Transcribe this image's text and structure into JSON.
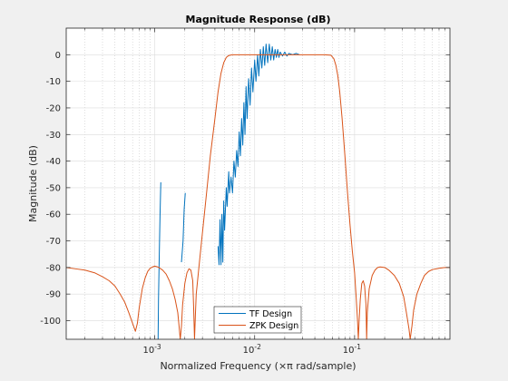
{
  "chart_data": {
    "type": "line",
    "title": "Magnitude Response (dB)",
    "xlabel": "Normalized Frequency (×π rad/sample)",
    "ylabel": "Magnitude (dB)",
    "x_scale": "log",
    "xlim": [
      0.00013,
      0.9
    ],
    "ylim": [
      -107,
      10
    ],
    "x_ticks": [
      {
        "value": 0.001,
        "base": "10",
        "exp": "-3"
      },
      {
        "value": 0.01,
        "base": "10",
        "exp": "-2"
      },
      {
        "value": 0.1,
        "base": "10",
        "exp": "-1"
      }
    ],
    "y_ticks": [
      0,
      -10,
      -20,
      -30,
      -40,
      -50,
      -60,
      -70,
      -80,
      -90,
      -100
    ],
    "grid": true,
    "legend_location": "bottom-center",
    "series": [
      {
        "name": "TF Design",
        "color": "#0072BD",
        "segments": [
          [
            [
              0.00108,
              -107
            ],
            [
              0.00109,
              -92
            ],
            [
              0.00111,
              -75
            ],
            [
              0.00113,
              -60
            ],
            [
              0.00115,
              -48
            ]
          ],
          [
            [
              0.00185,
              -78
            ],
            [
              0.00192,
              -70
            ],
            [
              0.00197,
              -58
            ],
            [
              0.00202,
              -52
            ]
          ],
          [
            [
              0.0043,
              -72
            ],
            [
              0.0044,
              -79
            ],
            [
              0.0045,
              -62
            ],
            [
              0.0046,
              -79
            ],
            [
              0.0047,
              -60
            ],
            [
              0.0048,
              -78
            ],
            [
              0.0049,
              -55
            ],
            [
              0.005,
              -66
            ],
            [
              0.0052,
              -50
            ],
            [
              0.0053,
              -57
            ],
            [
              0.0055,
              -44
            ],
            [
              0.0056,
              -52
            ],
            [
              0.0058,
              -46
            ],
            [
              0.006,
              -52
            ],
            [
              0.0062,
              -40
            ],
            [
              0.0064,
              -46
            ],
            [
              0.0066,
              -36
            ],
            [
              0.0068,
              -42
            ],
            [
              0.007,
              -29
            ],
            [
              0.0072,
              -38
            ],
            [
              0.0074,
              -24
            ],
            [
              0.0076,
              -34
            ],
            [
              0.0078,
              -18
            ],
            [
              0.008,
              -30
            ],
            [
              0.0082,
              -12
            ],
            [
              0.0084,
              -24
            ],
            [
              0.0087,
              -9
            ],
            [
              0.009,
              -19
            ],
            [
              0.0093,
              -5
            ],
            [
              0.0096,
              -14
            ],
            [
              0.01,
              -2
            ],
            [
              0.0103,
              -10
            ],
            [
              0.0107,
              0
            ],
            [
              0.011,
              -8
            ],
            [
              0.0114,
              2
            ],
            [
              0.0118,
              -5
            ],
            [
              0.0122,
              3
            ],
            [
              0.0126,
              -4
            ],
            [
              0.013,
              4
            ],
            [
              0.0135,
              -3
            ],
            [
              0.014,
              4
            ],
            [
              0.0145,
              -2
            ],
            [
              0.015,
              3
            ],
            [
              0.0155,
              -2
            ],
            [
              0.016,
              2
            ],
            [
              0.0165,
              -1
            ],
            [
              0.017,
              2
            ],
            [
              0.0175,
              -1
            ],
            [
              0.018,
              1
            ],
            [
              0.019,
              -0.5
            ],
            [
              0.02,
              1
            ],
            [
              0.021,
              -0.5
            ],
            [
              0.022,
              0.5
            ],
            [
              0.024,
              0
            ],
            [
              0.026,
              0.5
            ],
            [
              0.028,
              0
            ]
          ]
        ]
      },
      {
        "name": "ZPK Design",
        "color": "#D95319",
        "segments": [
          [
            [
              0.00013,
              -80
            ],
            [
              0.00016,
              -80.5
            ],
            [
              0.0002,
              -81
            ],
            [
              0.00025,
              -82
            ],
            [
              0.0003,
              -83.5
            ],
            [
              0.00035,
              -85
            ],
            [
              0.0004,
              -87
            ],
            [
              0.00045,
              -90
            ],
            [
              0.0005,
              -93
            ],
            [
              0.00055,
              -97
            ],
            [
              0.0006,
              -101
            ],
            [
              0.00064,
              -104
            ],
            [
              0.00067,
              -101
            ],
            [
              0.0007,
              -95
            ],
            [
              0.00075,
              -88
            ],
            [
              0.0008,
              -84
            ],
            [
              0.00085,
              -81.5
            ],
            [
              0.0009,
              -80.3
            ],
            [
              0.00095,
              -79.8
            ],
            [
              0.001,
              -79.5
            ],
            [
              0.00105,
              -79.7
            ],
            [
              0.0011,
              -80
            ],
            [
              0.0012,
              -81
            ],
            [
              0.0013,
              -82.5
            ],
            [
              0.0014,
              -85
            ],
            [
              0.0015,
              -88
            ],
            [
              0.0016,
              -92
            ],
            [
              0.0017,
              -97
            ],
            [
              0.00175,
              -102
            ],
            [
              0.0018,
              -107
            ],
            [
              0.00185,
              -102
            ],
            [
              0.0019,
              -94
            ],
            [
              0.002,
              -86
            ],
            [
              0.0021,
              -82
            ],
            [
              0.0022,
              -80.5
            ],
            [
              0.0023,
              -81
            ],
            [
              0.0024,
              -85
            ],
            [
              0.00245,
              -95
            ],
            [
              0.0025,
              -107
            ],
            [
              0.00255,
              -98
            ],
            [
              0.0026,
              -90
            ],
            [
              0.0028,
              -78
            ],
            [
              0.003,
              -67
            ],
            [
              0.0033,
              -52
            ],
            [
              0.0036,
              -38
            ],
            [
              0.004,
              -24
            ],
            [
              0.0043,
              -14
            ],
            [
              0.0046,
              -7
            ],
            [
              0.0049,
              -3
            ],
            [
              0.0052,
              -1
            ],
            [
              0.0055,
              -0.3
            ],
            [
              0.006,
              0
            ],
            [
              0.01,
              0
            ],
            [
              0.02,
              0
            ],
            [
              0.03,
              0
            ],
            [
              0.04,
              0
            ],
            [
              0.05,
              0
            ],
            [
              0.058,
              -0.2
            ],
            [
              0.062,
              -1.5
            ],
            [
              0.065,
              -4
            ],
            [
              0.068,
              -8
            ],
            [
              0.071,
              -14
            ],
            [
              0.075,
              -24
            ],
            [
              0.08,
              -38
            ],
            [
              0.085,
              -52
            ],
            [
              0.09,
              -64
            ],
            [
              0.095,
              -74
            ],
            [
              0.1,
              -82
            ],
            [
              0.104,
              -92
            ],
            [
              0.107,
              -100
            ],
            [
              0.109,
              -107
            ],
            [
              0.111,
              -100
            ],
            [
              0.114,
              -92
            ],
            [
              0.118,
              -86
            ],
            [
              0.122,
              -85
            ],
            [
              0.126,
              -87
            ],
            [
              0.13,
              -94
            ],
            [
              0.132,
              -107
            ],
            [
              0.134,
              -97
            ],
            [
              0.14,
              -88
            ],
            [
              0.15,
              -83
            ],
            [
              0.16,
              -81
            ],
            [
              0.17,
              -80
            ],
            [
              0.18,
              -79.8
            ],
            [
              0.2,
              -80
            ],
            [
              0.22,
              -81
            ],
            [
              0.25,
              -83
            ],
            [
              0.28,
              -86
            ],
            [
              0.31,
              -91
            ],
            [
              0.33,
              -97
            ],
            [
              0.35,
              -103
            ],
            [
              0.36,
              -107
            ],
            [
              0.375,
              -102
            ],
            [
              0.39,
              -96
            ],
            [
              0.42,
              -90
            ],
            [
              0.46,
              -86
            ],
            [
              0.5,
              -83
            ],
            [
              0.55,
              -81.5
            ],
            [
              0.6,
              -80.8
            ],
            [
              0.7,
              -80.3
            ],
            [
              0.8,
              -80
            ],
            [
              0.9,
              -80
            ]
          ]
        ]
      }
    ]
  }
}
